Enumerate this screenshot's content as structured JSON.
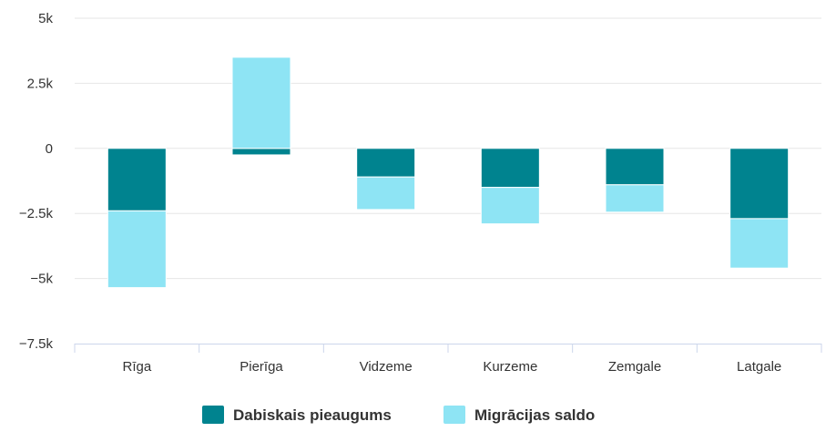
{
  "chart_data": {
    "type": "bar",
    "stacked": true,
    "categories": [
      "Rīga",
      "Pierīga",
      "Vidzeme",
      "Kurzeme",
      "Zemgale",
      "Latgale"
    ],
    "series": [
      {
        "name": "Dabiskais pieaugums",
        "color": "#00838f",
        "values": [
          -2400,
          -250,
          -1100,
          -1500,
          -1400,
          -2700
        ]
      },
      {
        "name": "Migrācijas saldo",
        "color": "#8ee4f4",
        "values": [
          -2950,
          3500,
          -1250,
          -1400,
          -1050,
          -1900
        ]
      }
    ],
    "y_ticks": [
      {
        "value": 5000,
        "label": "5k"
      },
      {
        "value": 2500,
        "label": "2.5k"
      },
      {
        "value": 0,
        "label": "0"
      },
      {
        "value": -2500,
        "label": "−2.5k"
      },
      {
        "value": -5000,
        "label": "−5k"
      },
      {
        "value": -7500,
        "label": "−7.5k"
      }
    ],
    "ylim": [
      -7500,
      5000
    ],
    "grid": true,
    "legend": "bottom-center",
    "title": "",
    "xlabel": "",
    "ylabel": ""
  }
}
